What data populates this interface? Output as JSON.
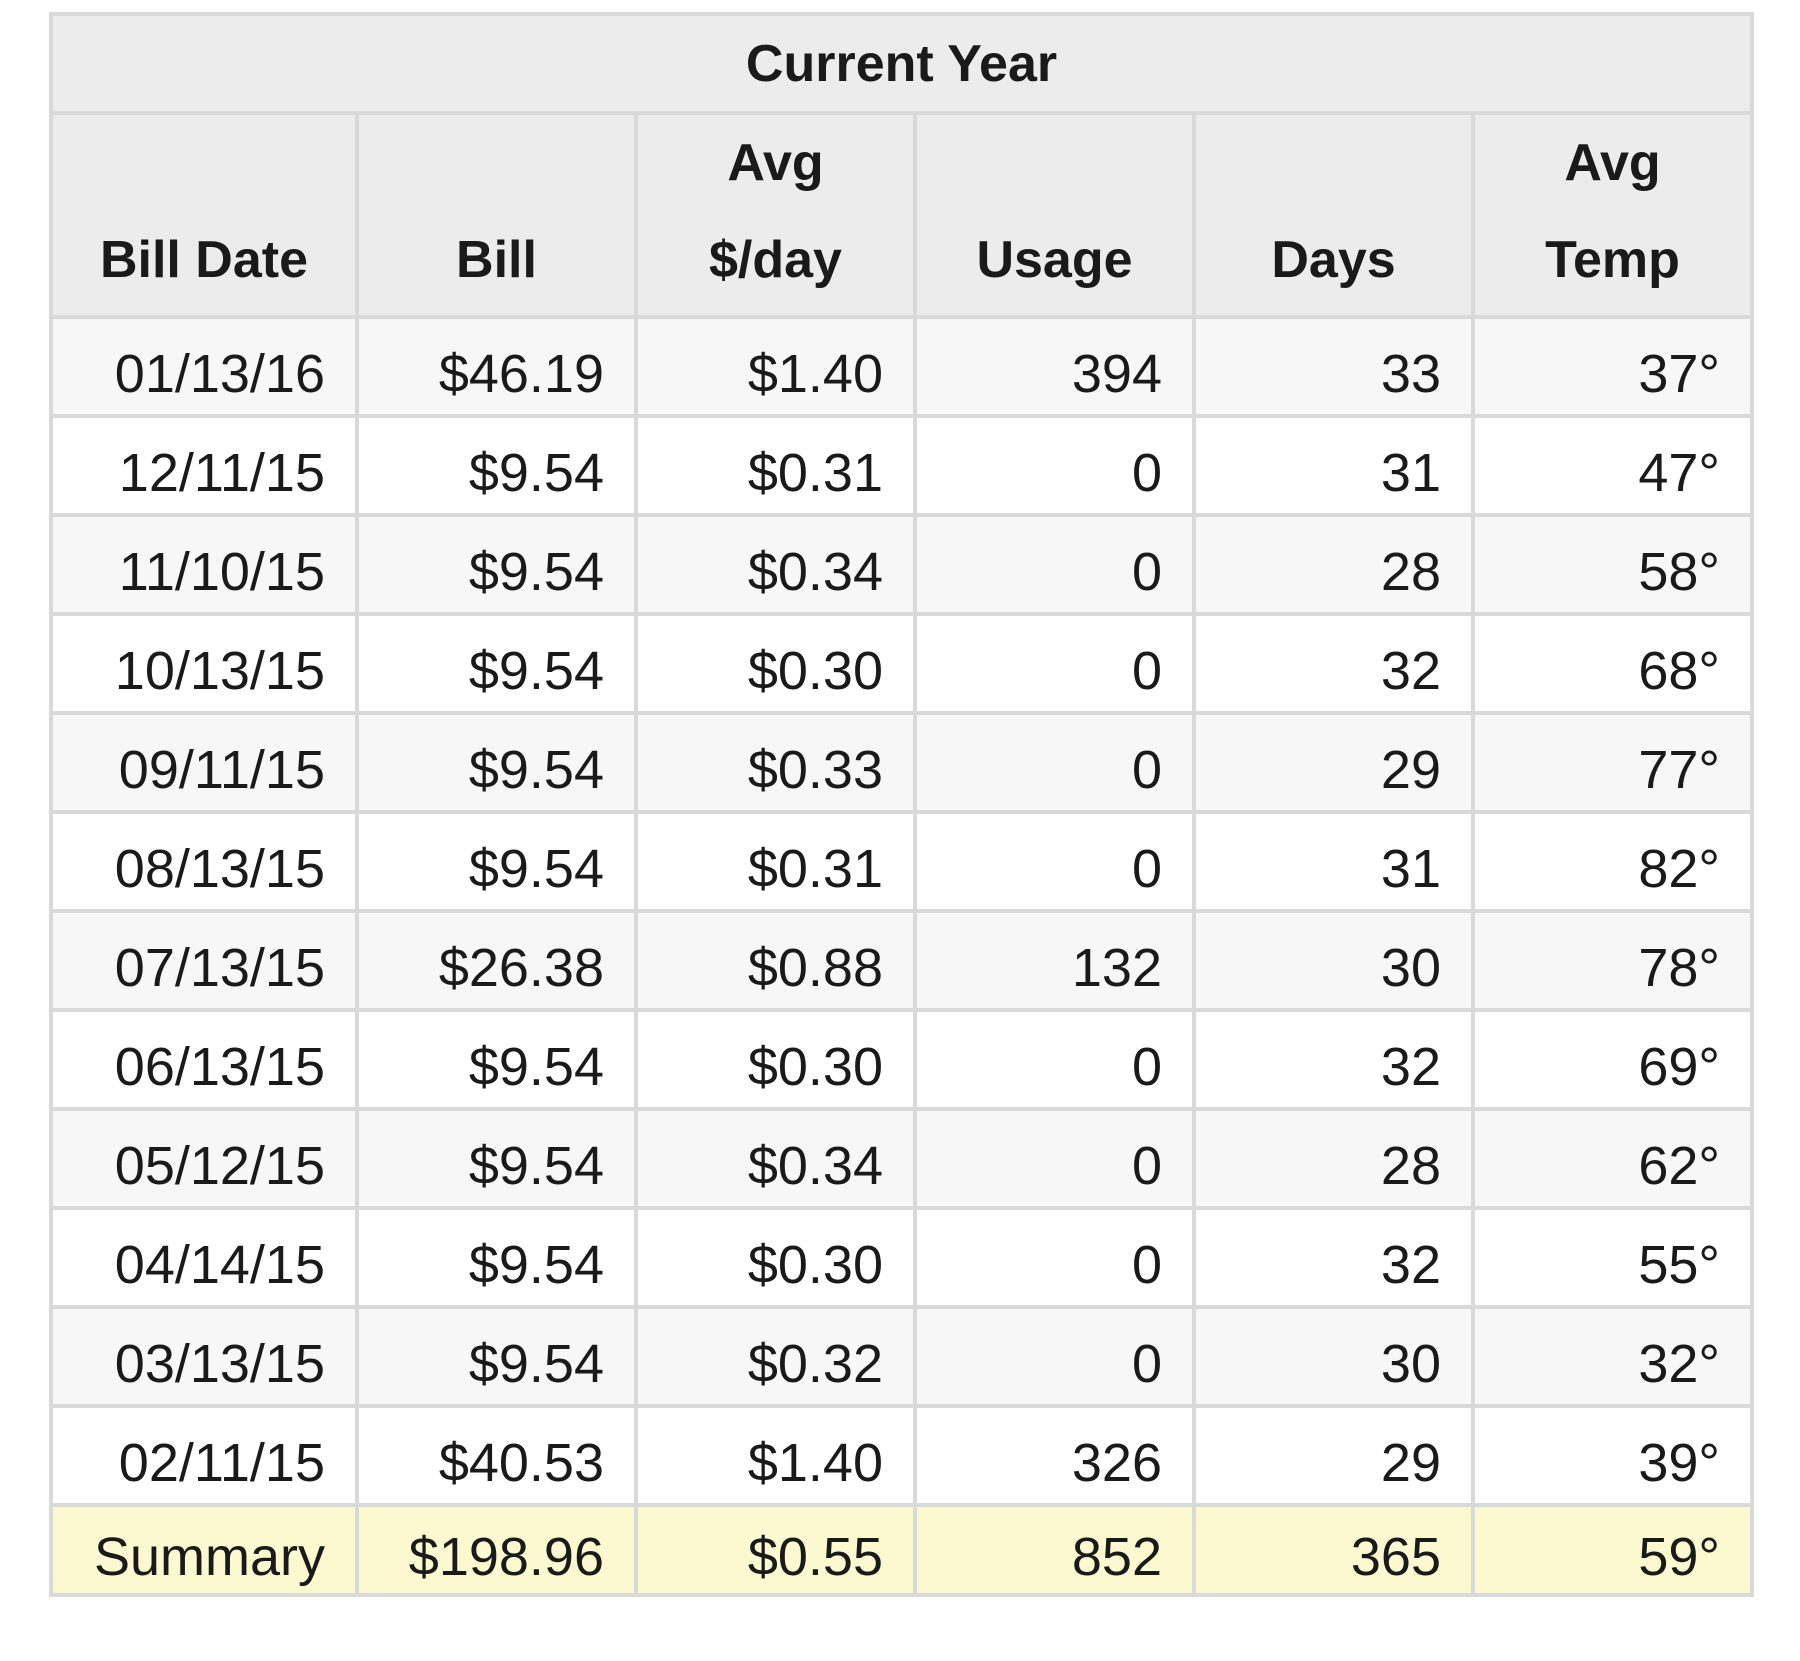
{
  "title": "Current Year",
  "columns": [
    {
      "line1": "",
      "line2": "Bill Date"
    },
    {
      "line1": "",
      "line2": "Bill"
    },
    {
      "line1": "Avg",
      "line2": "$/day"
    },
    {
      "line1": "",
      "line2": "Usage"
    },
    {
      "line1": "",
      "line2": "Days"
    },
    {
      "line1": "Avg",
      "line2": "Temp"
    }
  ],
  "rows": [
    {
      "date": "01/13/16",
      "bill": "$46.19",
      "avg_per_day": "$1.40",
      "usage": "394",
      "days": "33",
      "avg_temp": "37°"
    },
    {
      "date": "12/11/15",
      "bill": "$9.54",
      "avg_per_day": "$0.31",
      "usage": "0",
      "days": "31",
      "avg_temp": "47°"
    },
    {
      "date": "11/10/15",
      "bill": "$9.54",
      "avg_per_day": "$0.34",
      "usage": "0",
      "days": "28",
      "avg_temp": "58°"
    },
    {
      "date": "10/13/15",
      "bill": "$9.54",
      "avg_per_day": "$0.30",
      "usage": "0",
      "days": "32",
      "avg_temp": "68°"
    },
    {
      "date": "09/11/15",
      "bill": "$9.54",
      "avg_per_day": "$0.33",
      "usage": "0",
      "days": "29",
      "avg_temp": "77°"
    },
    {
      "date": "08/13/15",
      "bill": "$9.54",
      "avg_per_day": "$0.31",
      "usage": "0",
      "days": "31",
      "avg_temp": "82°"
    },
    {
      "date": "07/13/15",
      "bill": "$26.38",
      "avg_per_day": "$0.88",
      "usage": "132",
      "days": "30",
      "avg_temp": "78°"
    },
    {
      "date": "06/13/15",
      "bill": "$9.54",
      "avg_per_day": "$0.30",
      "usage": "0",
      "days": "32",
      "avg_temp": "69°"
    },
    {
      "date": "05/12/15",
      "bill": "$9.54",
      "avg_per_day": "$0.34",
      "usage": "0",
      "days": "28",
      "avg_temp": "62°"
    },
    {
      "date": "04/14/15",
      "bill": "$9.54",
      "avg_per_day": "$0.30",
      "usage": "0",
      "days": "32",
      "avg_temp": "55°"
    },
    {
      "date": "03/13/15",
      "bill": "$9.54",
      "avg_per_day": "$0.32",
      "usage": "0",
      "days": "30",
      "avg_temp": "32°"
    },
    {
      "date": "02/11/15",
      "bill": "$40.53",
      "avg_per_day": "$1.40",
      "usage": "326",
      "days": "29",
      "avg_temp": "39°"
    }
  ],
  "summary": {
    "label": "Summary",
    "bill": "$198.96",
    "avg_per_day": "$0.55",
    "usage": "852",
    "days": "365",
    "avg_temp": "59°"
  },
  "colors": {
    "header_bg": "#ececec",
    "row_alt_bg": "#f7f7f7",
    "row_bg": "#ffffff",
    "summary_bg": "#fcf8cf",
    "border": "#d9d9d9"
  }
}
